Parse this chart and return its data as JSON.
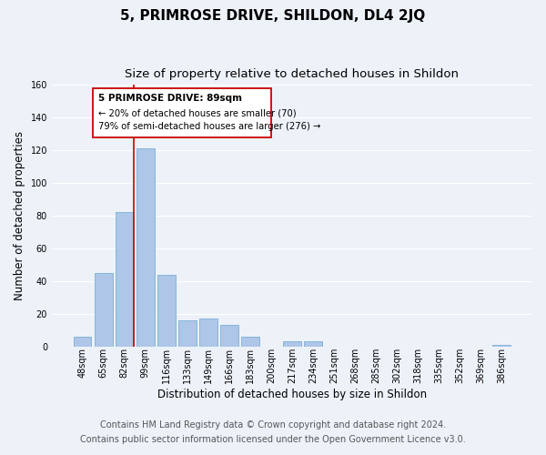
{
  "title": "5, PRIMROSE DRIVE, SHILDON, DL4 2JQ",
  "subtitle": "Size of property relative to detached houses in Shildon",
  "xlabel": "Distribution of detached houses by size in Shildon",
  "ylabel": "Number of detached properties",
  "bar_labels": [
    "48sqm",
    "65sqm",
    "82sqm",
    "99sqm",
    "116sqm",
    "133sqm",
    "149sqm",
    "166sqm",
    "183sqm",
    "200sqm",
    "217sqm",
    "234sqm",
    "251sqm",
    "268sqm",
    "285sqm",
    "302sqm",
    "318sqm",
    "335sqm",
    "352sqm",
    "369sqm",
    "386sqm"
  ],
  "bar_values": [
    6,
    45,
    82,
    121,
    44,
    16,
    17,
    13,
    6,
    0,
    3,
    3,
    0,
    0,
    0,
    0,
    0,
    0,
    0,
    0,
    1
  ],
  "bar_color": "#aec6e8",
  "bar_edge_color": "#7ab0d4",
  "vline_color": "#cc0000",
  "ylim": [
    0,
    160
  ],
  "yticks": [
    0,
    20,
    40,
    60,
    80,
    100,
    120,
    140,
    160
  ],
  "annotation_title": "5 PRIMROSE DRIVE: 89sqm",
  "annotation_line1": "← 20% of detached houses are smaller (70)",
  "annotation_line2": "79% of semi-detached houses are larger (276) →",
  "annotation_box_color": "#ffffff",
  "annotation_box_edge": "#cc0000",
  "footer_line1": "Contains HM Land Registry data © Crown copyright and database right 2024.",
  "footer_line2": "Contains public sector information licensed under the Open Government Licence v3.0.",
  "background_color": "#edf2f9",
  "grid_color": "#ffffff",
  "title_fontsize": 11,
  "subtitle_fontsize": 9.5,
  "ylabel_fontsize": 8.5,
  "xlabel_fontsize": 8.5,
  "tick_fontsize": 7,
  "footer_fontsize": 7
}
